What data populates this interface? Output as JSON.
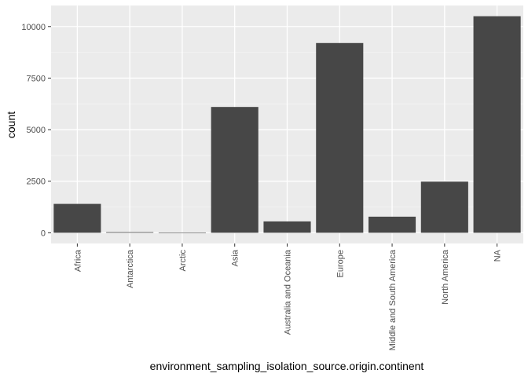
{
  "chart_data": {
    "type": "bar",
    "title": "",
    "xlabel": "environment_sampling_isolation_source.origin.continent",
    "ylabel": "count",
    "categories": [
      "Africa",
      "Antarctica",
      "Arctic",
      "Asia",
      "Australia and Oceania",
      "Europe",
      "Middle and South America",
      "North America",
      "NA"
    ],
    "values": [
      1400,
      30,
      5,
      6100,
      550,
      9200,
      780,
      2480,
      10500
    ],
    "ylim": [
      -520,
      11020
    ],
    "yticks": [
      0,
      2500,
      5000,
      7500,
      10000
    ],
    "ytick_labels": [
      "0",
      "2500",
      "5000",
      "7500",
      "10000"
    ],
    "grid": true,
    "legend": "none",
    "colors": {
      "bar": "#474747",
      "panel_background": "#ebebeb",
      "grid_major": "#ffffff",
      "tick_text": "#4d4d4d",
      "axis_title": "#000000"
    }
  }
}
